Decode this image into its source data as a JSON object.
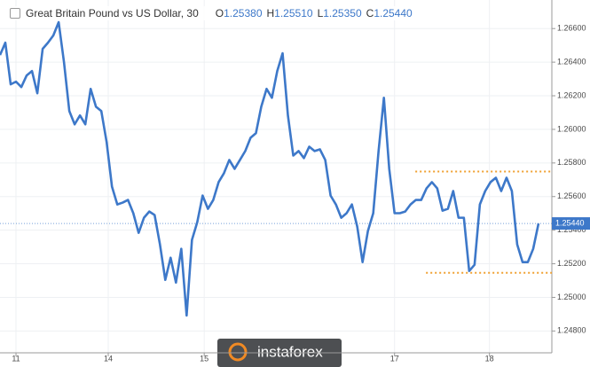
{
  "chart_data": {
    "type": "line",
    "title": "Great Britain Pound vs US Dollar, 30",
    "ohlc": [
      {
        "key": "O",
        "value": 1.2538,
        "label": "1.25380"
      },
      {
        "key": "H",
        "value": 1.2551,
        "label": "1.25510"
      },
      {
        "key": "L",
        "value": 1.2535,
        "label": "1.25350"
      },
      {
        "key": "C",
        "value": 1.2544,
        "label": "1.25440"
      }
    ],
    "color": "#3d78c9",
    "x": [
      0,
      1,
      2,
      3,
      4,
      5,
      6,
      7,
      8,
      9,
      10,
      11,
      12,
      13,
      14,
      15,
      16,
      17,
      18,
      19,
      20,
      21,
      22,
      23,
      24,
      25,
      26,
      27,
      28,
      29,
      30,
      31,
      32,
      33,
      34,
      35,
      36,
      37,
      38,
      39,
      40,
      41,
      42,
      43,
      44,
      45,
      46,
      47,
      48,
      49,
      50,
      51,
      52,
      53,
      54,
      55,
      56,
      57,
      58,
      59,
      60,
      61,
      62,
      63,
      64,
      65,
      66,
      67,
      68,
      69,
      70,
      71,
      72,
      73,
      74,
      75,
      76,
      77,
      78,
      79,
      80,
      81,
      82,
      83,
      84,
      85,
      86,
      87,
      88,
      89,
      90,
      91,
      92,
      93,
      94,
      95,
      96,
      97,
      98,
      99,
      100,
      101
    ],
    "values": [
      1.26442,
      1.26516,
      1.26268,
      1.26284,
      1.26252,
      1.26321,
      1.26347,
      1.26215,
      1.26479,
      1.26516,
      1.26559,
      1.26638,
      1.264,
      1.26109,
      1.2603,
      1.26083,
      1.2603,
      1.26241,
      1.26135,
      1.26109,
      1.25924,
      1.25659,
      1.25553,
      1.25564,
      1.2558,
      1.25501,
      1.25384,
      1.25474,
      1.25511,
      1.2549,
      1.25315,
      1.25104,
      1.25236,
      1.25088,
      1.25289,
      1.24892,
      1.25342,
      1.25448,
      1.25606,
      1.25527,
      1.2558,
      1.25686,
      1.25739,
      1.25818,
      1.25765,
      1.25818,
      1.25871,
      1.2595,
      1.25977,
      1.26135,
      1.26241,
      1.26188,
      1.26347,
      1.26453,
      1.26083,
      1.25844,
      1.25871,
      1.25829,
      1.25897,
      1.25871,
      1.25881,
      1.25818,
      1.25606,
      1.25553,
      1.25474,
      1.25501,
      1.25553,
      1.25421,
      1.2521,
      1.25395,
      1.25501,
      1.25871,
      1.26188,
      1.25765,
      1.25501,
      1.25501,
      1.25511,
      1.25553,
      1.2558,
      1.2558,
      1.25649,
      1.25686,
      1.25649,
      1.25516,
      1.25527,
      1.25633,
      1.25474,
      1.25474,
      1.25157,
      1.25194,
      1.25553,
      1.25633,
      1.25686,
      1.25712,
      1.25633,
      1.25712,
      1.25633,
      1.25315,
      1.2521,
      1.2521,
      1.25289,
      1.2544
    ],
    "xlim": [
      0,
      103.5
    ],
    "xticks": [
      {
        "value": 3,
        "label": "11"
      },
      {
        "value": 20.3,
        "label": "14"
      },
      {
        "value": 38.3,
        "label": "15"
      },
      {
        "value": 74,
        "label": "17"
      },
      {
        "value": 91.8,
        "label": "18"
      }
    ],
    "ylim": [
      1.2467,
      1.2677
    ],
    "yticks": [
      {
        "value": 1.248,
        "label": "1.24800"
      },
      {
        "value": 1.25,
        "label": "1.25000"
      },
      {
        "value": 1.252,
        "label": "1.25200"
      },
      {
        "value": 1.254,
        "label": "1.25400"
      },
      {
        "value": 1.256,
        "label": "1.25600"
      },
      {
        "value": 1.258,
        "label": "1.25800"
      },
      {
        "value": 1.26,
        "label": "1.26000"
      },
      {
        "value": 1.262,
        "label": "1.26200"
      },
      {
        "value": 1.264,
        "label": "1.26400"
      },
      {
        "value": 1.266,
        "label": "1.26600"
      }
    ],
    "grid": true,
    "levels": [
      {
        "value": 1.25749,
        "x": [
          77.9,
          103.5
        ],
        "color": "#f0a030"
      },
      {
        "value": 1.25146,
        "x": [
          79.9,
          103.5
        ],
        "color": "#f0a030"
      }
    ],
    "current_price": {
      "value": 1.2544,
      "label": "1.25440",
      "color": "#3d78c9"
    },
    "watermark": "instaforex"
  }
}
